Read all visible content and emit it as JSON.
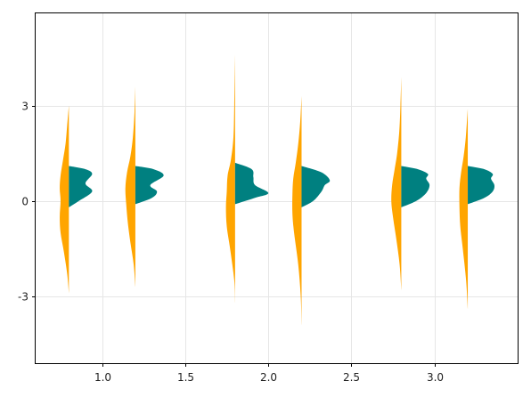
{
  "chart_data": {
    "type": "violin",
    "split": true,
    "title": "",
    "xlabel": "",
    "ylabel": "",
    "xlim": [
      0.6,
      3.5
    ],
    "ylim": [
      -5.1,
      5.9
    ],
    "grid": true,
    "xticks": [
      1.0,
      1.5,
      2.0,
      2.5,
      3.0
    ],
    "xtick_labels": [
      "1.0",
      "1.5",
      "2.0",
      "2.5",
      "3.0"
    ],
    "yticks": [
      3,
      0,
      -3
    ],
    "ytick_labels": [
      "3",
      "0",
      "-3"
    ],
    "colors": {
      "left": "#FFA500",
      "right": "#008080"
    },
    "violins": [
      {
        "x": 0.8,
        "left": {
          "min": -2.9,
          "max": 3.0,
          "profile": [
            [
              -2.9,
              0
            ],
            [
              -2.3,
              0.01
            ],
            [
              -1.6,
              0.03
            ],
            [
              -1.0,
              0.05
            ],
            [
              -0.5,
              0.055
            ],
            [
              0.0,
              0.05
            ],
            [
              0.4,
              0.055
            ],
            [
              0.8,
              0.05
            ],
            [
              1.3,
              0.035
            ],
            [
              1.8,
              0.02
            ],
            [
              2.4,
              0.01
            ],
            [
              3.0,
              0
            ]
          ]
        },
        "right": {
          "min": -0.2,
          "max": 1.1,
          "profile": [
            [
              -0.2,
              0
            ],
            [
              0.0,
              0.06
            ],
            [
              0.3,
              0.14
            ],
            [
              0.55,
              0.1
            ],
            [
              0.85,
              0.14
            ],
            [
              1.0,
              0.1
            ],
            [
              1.1,
              0
            ]
          ]
        }
      },
      {
        "x": 1.2,
        "left": {
          "min": -2.7,
          "max": 3.6,
          "profile": [
            [
              -2.7,
              0
            ],
            [
              -2.0,
              0.01
            ],
            [
              -1.3,
              0.03
            ],
            [
              -0.7,
              0.045
            ],
            [
              -0.1,
              0.055
            ],
            [
              0.4,
              0.06
            ],
            [
              0.9,
              0.05
            ],
            [
              1.4,
              0.03
            ],
            [
              2.0,
              0.015
            ],
            [
              2.8,
              0.005
            ],
            [
              3.6,
              0
            ]
          ]
        },
        "right": {
          "min": -0.1,
          "max": 1.1,
          "profile": [
            [
              -0.1,
              0
            ],
            [
              0.1,
              0.1
            ],
            [
              0.3,
              0.13
            ],
            [
              0.5,
              0.09
            ],
            [
              0.8,
              0.17
            ],
            [
              1.0,
              0.11
            ],
            [
              1.1,
              0
            ]
          ]
        }
      },
      {
        "x": 1.8,
        "left": {
          "min": -3.2,
          "max": 4.6,
          "profile": [
            [
              -3.2,
              0
            ],
            [
              -2.5,
              0.005
            ],
            [
              -1.5,
              0.03
            ],
            [
              -0.8,
              0.05
            ],
            [
              -0.2,
              0.055
            ],
            [
              0.3,
              0.05
            ],
            [
              0.8,
              0.045
            ],
            [
              1.3,
              0.025
            ],
            [
              2.0,
              0.01
            ],
            [
              3.0,
              0.005
            ],
            [
              4.6,
              0
            ]
          ]
        },
        "right": {
          "min": -0.1,
          "max": 1.2,
          "profile": [
            [
              -0.1,
              0
            ],
            [
              0.1,
              0.12
            ],
            [
              0.25,
              0.2
            ],
            [
              0.5,
              0.12
            ],
            [
              0.75,
              0.11
            ],
            [
              1.0,
              0.1
            ],
            [
              1.2,
              0
            ]
          ]
        }
      },
      {
        "x": 2.2,
        "left": {
          "min": -3.9,
          "max": 3.3,
          "profile": [
            [
              -3.9,
              0
            ],
            [
              -3.0,
              0.005
            ],
            [
              -2.0,
              0.02
            ],
            [
              -1.0,
              0.045
            ],
            [
              -0.4,
              0.055
            ],
            [
              0.2,
              0.055
            ],
            [
              0.7,
              0.05
            ],
            [
              1.2,
              0.035
            ],
            [
              1.8,
              0.02
            ],
            [
              2.5,
              0.008
            ],
            [
              3.3,
              0
            ]
          ]
        },
        "right": {
          "min": -0.2,
          "max": 1.1,
          "profile": [
            [
              -0.2,
              0
            ],
            [
              0.0,
              0.07
            ],
            [
              0.3,
              0.12
            ],
            [
              0.5,
              0.14
            ],
            [
              0.65,
              0.17
            ],
            [
              0.9,
              0.12
            ],
            [
              1.1,
              0
            ]
          ]
        }
      },
      {
        "x": 2.8,
        "left": {
          "min": -2.8,
          "max": 3.9,
          "profile": [
            [
              -2.8,
              0
            ],
            [
              -2.0,
              0.01
            ],
            [
              -1.2,
              0.03
            ],
            [
              -0.5,
              0.05
            ],
            [
              0.0,
              0.06
            ],
            [
              0.5,
              0.055
            ],
            [
              1.0,
              0.04
            ],
            [
              1.5,
              0.025
            ],
            [
              2.2,
              0.012
            ],
            [
              3.0,
              0.005
            ],
            [
              3.9,
              0
            ]
          ]
        },
        "right": {
          "min": -0.2,
          "max": 1.1,
          "profile": [
            [
              -0.2,
              0
            ],
            [
              0.0,
              0.09
            ],
            [
              0.25,
              0.15
            ],
            [
              0.5,
              0.17
            ],
            [
              0.7,
              0.15
            ],
            [
              0.85,
              0.16
            ],
            [
              1.0,
              0.1
            ],
            [
              1.1,
              0
            ]
          ]
        }
      },
      {
        "x": 3.2,
        "left": {
          "min": -3.4,
          "max": 2.9,
          "profile": [
            [
              -3.4,
              0
            ],
            [
              -2.5,
              0.01
            ],
            [
              -1.5,
              0.03
            ],
            [
              -0.8,
              0.045
            ],
            [
              -0.2,
              0.05
            ],
            [
              0.4,
              0.05
            ],
            [
              0.9,
              0.04
            ],
            [
              1.4,
              0.025
            ],
            [
              2.0,
              0.012
            ],
            [
              2.9,
              0
            ]
          ]
        },
        "right": {
          "min": -0.1,
          "max": 1.1,
          "profile": [
            [
              -0.1,
              0
            ],
            [
              0.1,
              0.1
            ],
            [
              0.3,
              0.15
            ],
            [
              0.5,
              0.16
            ],
            [
              0.7,
              0.14
            ],
            [
              0.85,
              0.15
            ],
            [
              1.0,
              0.1
            ],
            [
              1.1,
              0
            ]
          ]
        }
      }
    ]
  }
}
